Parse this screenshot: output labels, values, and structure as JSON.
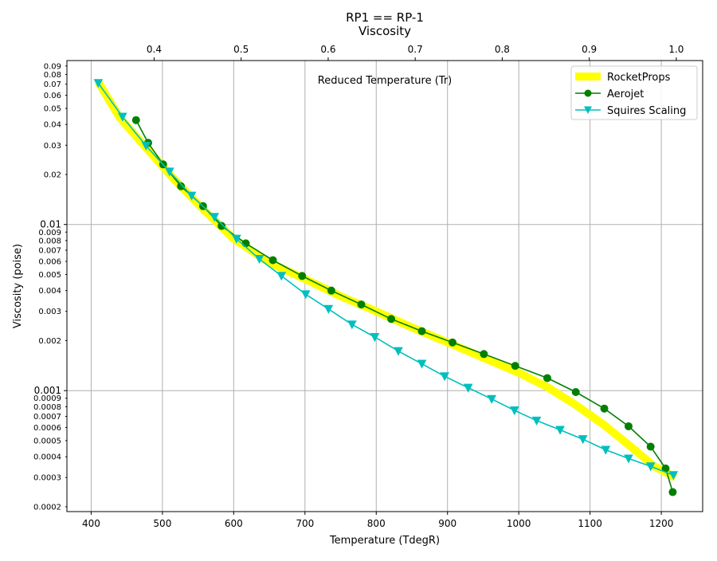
{
  "chart_data": {
    "type": "line",
    "title": "RP1 == RP-1",
    "subtitle": "Viscosity",
    "xlabel": "Temperature (TdegR)",
    "ylabel": "Viscosity (poise)",
    "x2label": "Reduced Temperature (Tr)",
    "xlim": [
      366,
      1258
    ],
    "ylim": [
      0.000187,
      0.097
    ],
    "yscale": "log",
    "x2lim": [
      0.2998,
      1.0303
    ],
    "grid": true,
    "legend_position": "top-right",
    "xticks": [
      "400",
      "500",
      "600",
      "700",
      "800",
      "900",
      "1000",
      "1100",
      "1200"
    ],
    "x2ticks": [
      "0.4",
      "0.5",
      "0.6",
      "0.7",
      "0.8",
      "0.9",
      "1.0"
    ],
    "yticks_major": [
      "0.001",
      "0.01"
    ],
    "yticks_minor": [
      "0.0002",
      "0.0003",
      "0.0004",
      "0.0005",
      "0.0006",
      "0.0007",
      "0.0008",
      "0.0009",
      "0.002",
      "0.003",
      "0.004",
      "0.005",
      "0.006",
      "0.007",
      "0.008",
      "0.009",
      "0.02",
      "0.03",
      "0.04",
      "0.05",
      "0.06",
      "0.07",
      "0.08",
      "0.09"
    ],
    "series": [
      {
        "name": "RocketProps",
        "color": "#ffff00",
        "marker": "none",
        "x": [
          410,
          440,
          480,
          520,
          560,
          600,
          650,
          700,
          750,
          800,
          850,
          900,
          950,
          1000,
          1040,
          1080,
          1120,
          1160,
          1190,
          1220
        ],
        "y": [
          0.072,
          0.044,
          0.028,
          0.018,
          0.012,
          0.0082,
          0.0059,
          0.0047,
          0.0037,
          0.003,
          0.0024,
          0.00195,
          0.00158,
          0.00128,
          0.00105,
          0.00082,
          0.00062,
          0.00045,
          0.00035,
          0.0003
        ]
      },
      {
        "name": "Aerojet",
        "color": "#008000",
        "marker": "circle",
        "x": [
          463,
          480,
          501,
          526,
          557,
          583,
          617,
          655,
          696,
          737,
          779,
          821,
          864,
          907,
          951,
          995,
          1040,
          1080,
          1120,
          1154,
          1185,
          1206,
          1216
        ],
        "y": [
          0.0425,
          0.031,
          0.023,
          0.017,
          0.0129,
          0.0098,
          0.0077,
          0.0061,
          0.0049,
          0.004,
          0.0033,
          0.0027,
          0.00228,
          0.00195,
          0.00166,
          0.00141,
          0.00119,
          0.00098,
          0.00078,
          0.00061,
          0.00046,
          0.00034,
          0.000245
        ]
      },
      {
        "name": "Squires Scaling",
        "color": "#00bfbf",
        "marker": "triangle-down",
        "x": [
          410,
          444,
          477,
          510,
          541,
          573,
          604,
          636,
          667,
          701,
          733,
          766,
          798,
          831,
          864,
          896,
          929,
          962,
          994,
          1025,
          1058,
          1090,
          1122,
          1154,
          1185,
          1217
        ],
        "y": [
          0.071,
          0.0445,
          0.0298,
          0.0208,
          0.0149,
          0.0111,
          0.0082,
          0.0062,
          0.0049,
          0.0038,
          0.0031,
          0.0025,
          0.0021,
          0.00173,
          0.00145,
          0.00122,
          0.00104,
          0.00089,
          0.00076,
          0.00066,
          0.00058,
          0.00051,
          0.00044,
          0.00039,
          0.00035,
          0.00031
        ]
      }
    ]
  }
}
